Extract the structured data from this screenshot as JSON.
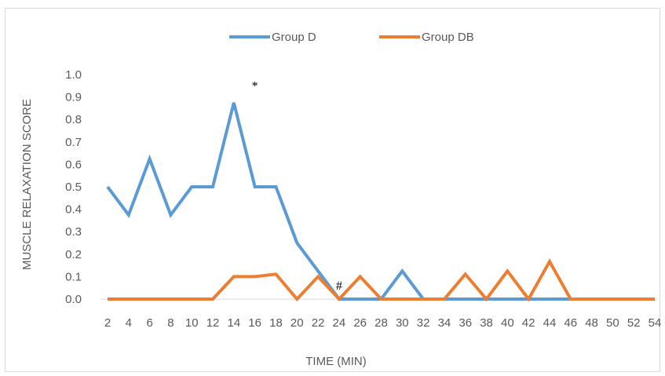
{
  "chart_data": {
    "type": "line",
    "title": "",
    "xlabel": "TIME (MIN)",
    "ylabel": "MUSCLE RELAXATION SCORE",
    "x": [
      2,
      4,
      6,
      8,
      10,
      12,
      14,
      16,
      18,
      20,
      22,
      24,
      26,
      28,
      30,
      32,
      34,
      36,
      38,
      40,
      42,
      44,
      46,
      48,
      50,
      52,
      54
    ],
    "x_tick_labels": [
      "2",
      "4",
      "6",
      "8",
      "10",
      "12",
      "14",
      "16",
      "18",
      "20",
      "22",
      "24",
      "26",
      "28",
      "30",
      "32",
      "34",
      "36",
      "38",
      "40",
      "42",
      "44",
      "46",
      "48",
      "50",
      "52",
      "54"
    ],
    "y_tick_labels": [
      "0.0",
      "0.1",
      "0.2",
      "0.3",
      "0.4",
      "0.5",
      "0.6",
      "0.7",
      "0.8",
      "0.9",
      "1.0"
    ],
    "ylim": [
      0,
      1.0
    ],
    "grid": false,
    "legend_position": "top",
    "series": [
      {
        "name": "Group D",
        "color": "#5b9bd5",
        "values": [
          0.5,
          0.375,
          0.625,
          0.375,
          0.5,
          0.5,
          0.875,
          0.5,
          0.5,
          0.25,
          0.125,
          0,
          0,
          0,
          0.125,
          0,
          0,
          0,
          0,
          0,
          0,
          0,
          0,
          0,
          0,
          0,
          0
        ]
      },
      {
        "name": "Group DB",
        "color": "#ed7d31",
        "values": [
          0,
          0,
          0,
          0,
          0,
          0,
          0.1,
          0.1,
          0.111,
          0,
          0.1,
          0,
          0.1,
          0,
          0,
          0,
          0,
          0.111,
          0,
          0.125,
          0,
          0.167,
          0,
          0,
          0,
          0,
          0
        ]
      }
    ],
    "annotations": [
      {
        "text": "*",
        "x": 16,
        "y": 0.95
      },
      {
        "text": "#",
        "x": 24,
        "y": 0.06
      }
    ]
  }
}
